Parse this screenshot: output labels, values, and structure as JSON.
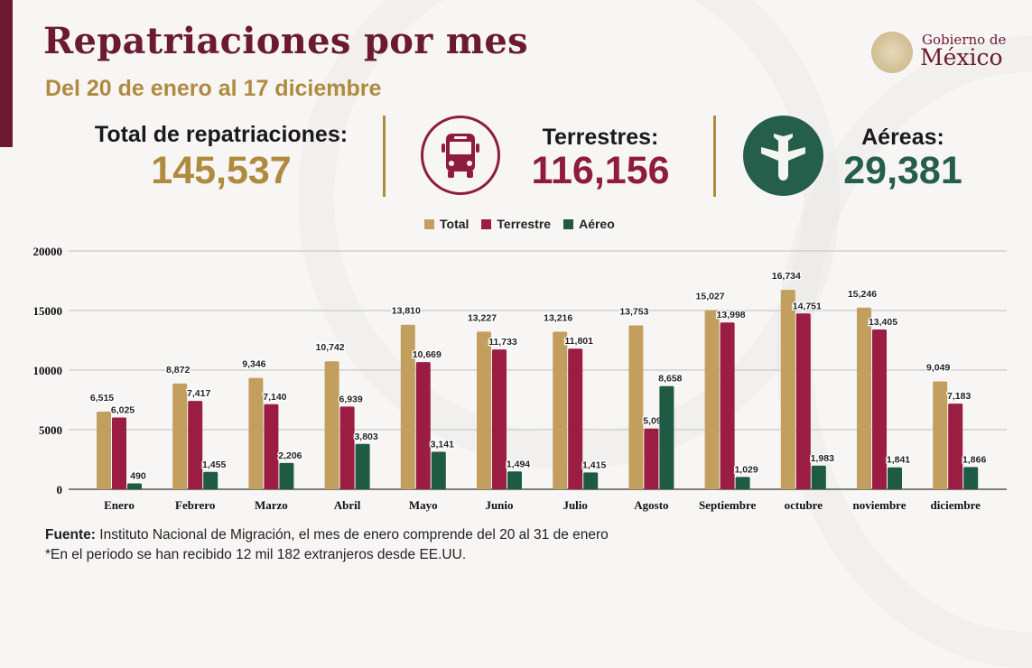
{
  "header": {
    "title": "Repatriaciones por mes",
    "subtitle": "Del 20 de enero al 17 diciembre"
  },
  "logo": {
    "line1": "Gobierno de",
    "line2": "México"
  },
  "stats": {
    "total": {
      "label": "Total de repatriaciones:",
      "value": "145,537",
      "color": "#b08a3e"
    },
    "terrestres": {
      "label": "Terrestres:",
      "value": "116,156",
      "color": "#8f1c3e",
      "icon": "bus-icon"
    },
    "aereas": {
      "label": "Aéreas:",
      "value": "29,381",
      "color": "#255e4b",
      "icon": "airplane-icon"
    }
  },
  "chart_data": {
    "type": "bar",
    "title": "",
    "xlabel": "",
    "ylabel": "",
    "ylim": [
      0,
      20000
    ],
    "yticks": [
      0,
      5000,
      10000,
      15000,
      20000
    ],
    "grid": true,
    "legend_position": "top-center",
    "categories": [
      "Enero",
      "Febrero",
      "Marzo",
      "Abril",
      "Mayo",
      "Junio",
      "Julio",
      "Agosto",
      "Septiembre",
      "octubre",
      "noviembre",
      "diciembre"
    ],
    "series": [
      {
        "name": "Total",
        "color": "#c29f5e",
        "values": [
          6515,
          8872,
          9346,
          10742,
          13810,
          13227,
          13216,
          13753,
          15027,
          16734,
          15246,
          9049
        ],
        "labels": [
          "6,515",
          "8,872",
          "9,346",
          "10,742",
          "13,810",
          "13,227",
          "13,216",
          "13,753",
          "15,027",
          "16,734",
          "15,246",
          "9,049"
        ]
      },
      {
        "name": "Terrestre",
        "color": "#9b1d44",
        "values": [
          6025,
          7417,
          7140,
          6939,
          10669,
          11733,
          11801,
          5095,
          13998,
          14751,
          13405,
          7183
        ],
        "labels": [
          "6,025",
          "7,417",
          "7,140",
          "6,939",
          "10,669",
          "11,733",
          "11,801",
          "5,095",
          "13,998",
          "14,751",
          "13,405",
          "7,183"
        ]
      },
      {
        "name": "Aéreo",
        "color": "#1f5a45",
        "values": [
          490,
          1455,
          2206,
          3803,
          3141,
          1494,
          1415,
          8658,
          1029,
          1983,
          1841,
          1866
        ],
        "labels": [
          "490",
          "1,455",
          "2,206",
          "3,803",
          "3,141",
          "1,494",
          "1,415",
          "8,658",
          "1,029",
          "1,983",
          "1,841",
          "1,866"
        ]
      }
    ]
  },
  "footer": {
    "source_label": "Fuente:",
    "source_text": " Instituto Nacional de Migración, el mes de enero comprende del 20 al 31 de enero",
    "note": "*En el periodo se han recibido 12 mil 182 extranjeros desde EE.UU."
  }
}
